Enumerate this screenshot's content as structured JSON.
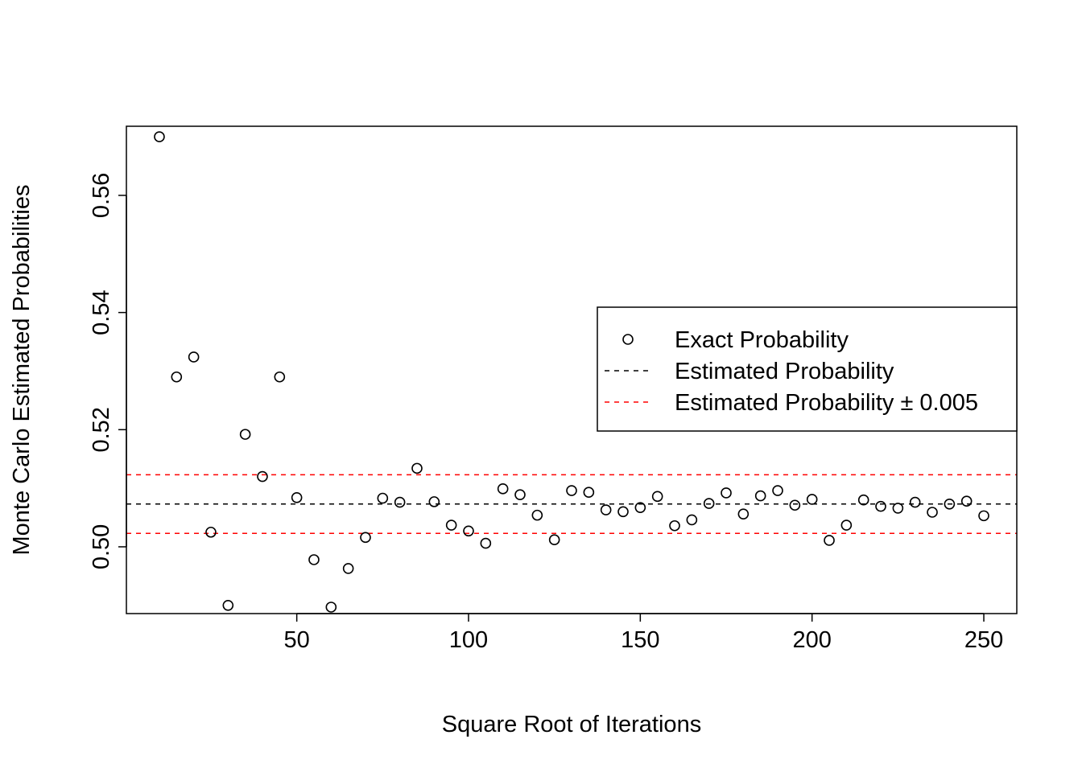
{
  "chart_data": {
    "type": "scatter",
    "title": "",
    "xlabel": "Square Root of Iterations",
    "ylabel": "Monte Carlo Estimated Probabilities",
    "xlim": [
      0.4,
      259.6
    ],
    "ylim": [
      0.4886,
      0.5718
    ],
    "x_ticks": [
      50,
      100,
      150,
      200,
      250
    ],
    "x_tick_labels": [
      "50",
      "100",
      "150",
      "200",
      "250"
    ],
    "y_ticks": [
      0.5,
      0.52,
      0.54,
      0.56
    ],
    "y_tick_labels": [
      "0.50",
      "0.52",
      "0.54",
      "0.56"
    ],
    "grid": false,
    "legend_position": "right",
    "series": [
      {
        "name": "Exact Probability",
        "marker": "open-circle",
        "color": "#000000",
        "x": [
          10,
          15,
          20,
          25,
          30,
          35,
          40,
          45,
          50,
          55,
          60,
          65,
          70,
          75,
          80,
          85,
          90,
          95,
          100,
          105,
          110,
          115,
          120,
          125,
          130,
          135,
          140,
          145,
          150,
          155,
          160,
          165,
          170,
          175,
          180,
          185,
          190,
          195,
          200,
          205,
          210,
          215,
          220,
          225,
          230,
          235,
          240,
          245,
          250
        ],
        "y": [
          0.57,
          0.529,
          0.5324,
          0.5025,
          0.49,
          0.5192,
          0.512,
          0.529,
          0.5084,
          0.4978,
          0.4897,
          0.4963,
          0.5016,
          0.5083,
          0.5076,
          0.5134,
          0.5077,
          0.5037,
          0.5027,
          0.5006,
          0.5099,
          0.5089,
          0.5054,
          0.5012,
          0.5096,
          0.5093,
          0.5063,
          0.506,
          0.5067,
          0.5086,
          0.5036,
          0.5046,
          0.5074,
          0.5092,
          0.5056,
          0.5087,
          0.5096,
          0.5071,
          0.5081,
          0.5011,
          0.5037,
          0.508,
          0.5069,
          0.5066,
          0.5076,
          0.5059,
          0.5073,
          0.5078,
          0.5053
        ]
      }
    ],
    "hlines": [
      {
        "name": "Estimated Probability",
        "y": 0.5073,
        "color": "#000000",
        "style": "dashed"
      },
      {
        "name": "Estimated Probability ± 0.005",
        "y": 0.5123,
        "color": "#ff0000",
        "style": "dashed"
      },
      {
        "name": "Estimated Probability ± 0.005",
        "y": 0.5023,
        "color": "#ff0000",
        "style": "dashed"
      }
    ],
    "legend": [
      {
        "label": "Exact Probability",
        "symbol": "open-circle",
        "color": "#000000"
      },
      {
        "label": "Estimated Probability",
        "symbol": "dashed-line",
        "color": "#000000"
      },
      {
        "label": "Estimated Probability ± 0.005",
        "symbol": "dashed-line",
        "color": "#ff0000"
      }
    ]
  }
}
